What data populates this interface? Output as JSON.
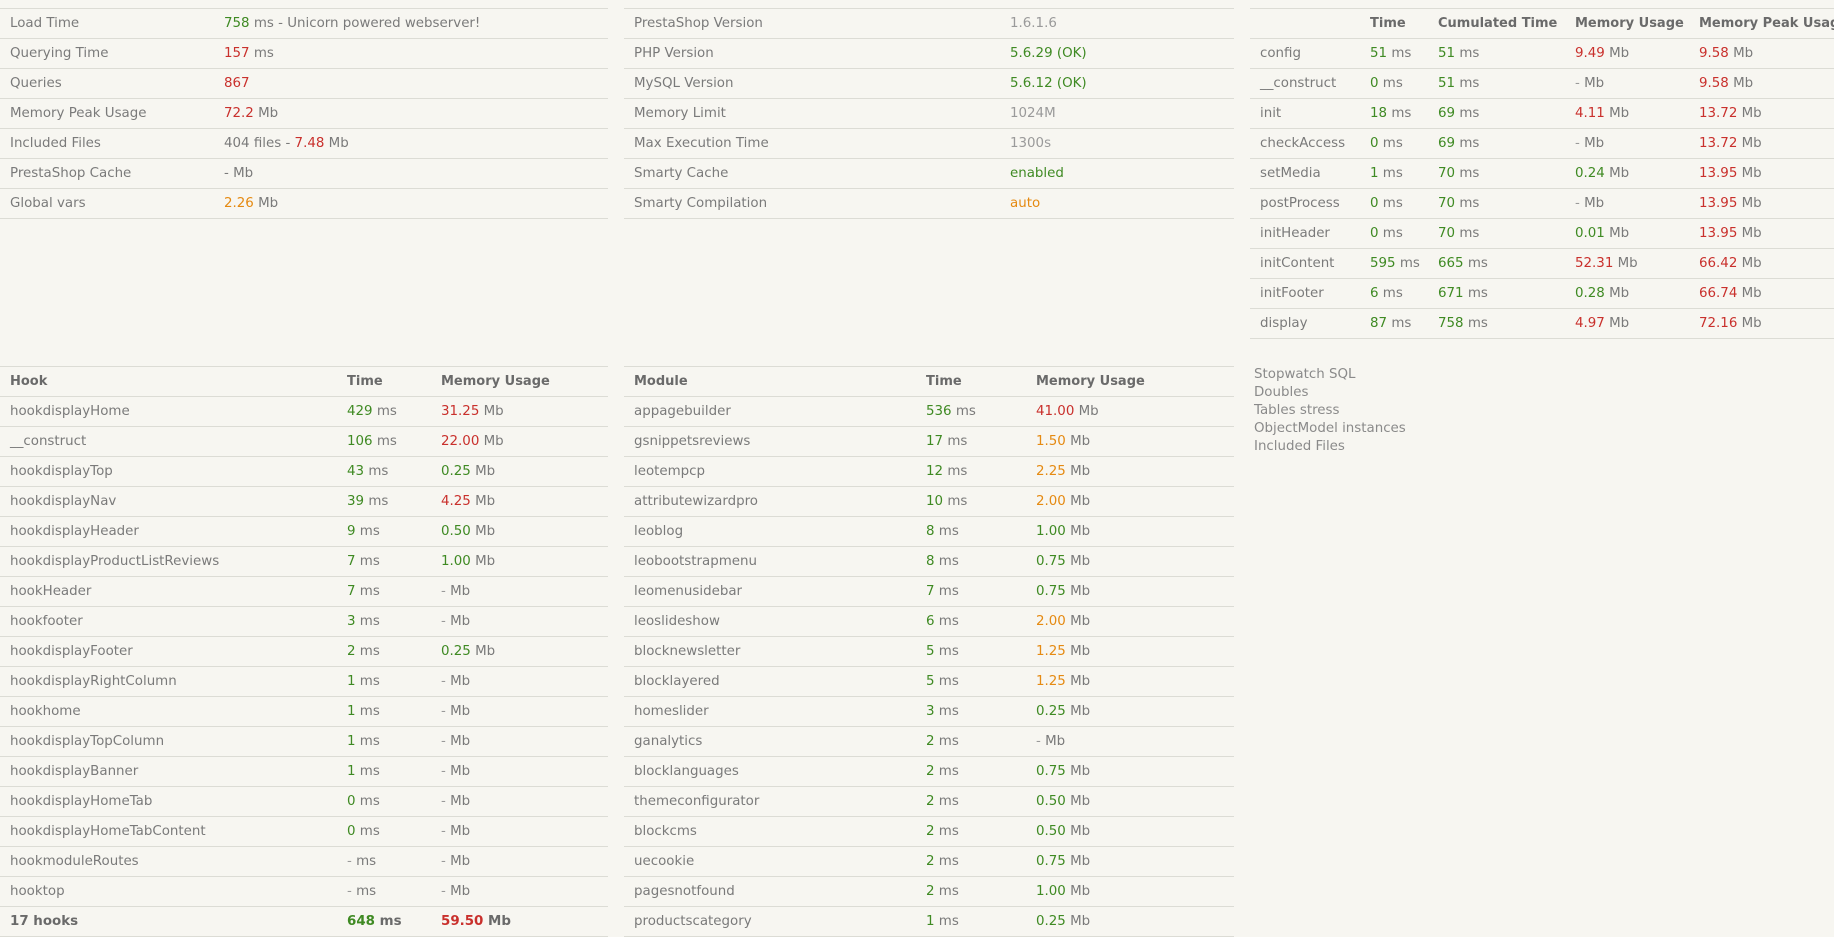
{
  "summary": {
    "load_time_label": "Load Time",
    "load_time_value": "758",
    "load_time_unit": "ms - Unicorn powered webserver!",
    "querying_time_label": "Querying Time",
    "querying_time_value": "157",
    "querying_time_unit": "ms",
    "queries_label": "Queries",
    "queries_value": "867",
    "memory_peak_label": "Memory Peak Usage",
    "memory_peak_value": "72.2",
    "memory_peak_unit": "Mb",
    "included_files_label": "Included Files",
    "included_files_count": "404 files -",
    "included_files_size": "7.48",
    "included_files_unit": "Mb",
    "ps_cache_label": "PrestaShop Cache",
    "ps_cache_value": "- Mb",
    "global_vars_label": "Global vars",
    "global_vars_value": "2.26",
    "global_vars_unit": "Mb"
  },
  "environment": [
    {
      "label": "PrestaShop Version",
      "value": "1.6.1.6",
      "color": "k"
    },
    {
      "label": "PHP Version",
      "value": "5.6.29 (OK)",
      "color": "g"
    },
    {
      "label": "MySQL Version",
      "value": "5.6.12 (OK)",
      "color": "g"
    },
    {
      "label": "Memory Limit",
      "value": "1024M",
      "color": "k"
    },
    {
      "label": "Max Execution Time",
      "value": "1300s",
      "color": "k"
    },
    {
      "label": "Smarty Cache",
      "value": "enabled",
      "color": "g"
    },
    {
      "label": "Smarty Compilation",
      "value": "auto",
      "color": "o"
    }
  ],
  "steps": {
    "headers": [
      "",
      "Time",
      "Cumulated Time",
      "Memory Usage",
      "Memory Peak Usage"
    ],
    "rows": [
      {
        "name": "config",
        "time": "51",
        "cum": "51",
        "mem": "9.49",
        "memc": "r",
        "peak": "9.58"
      },
      {
        "name": "__construct",
        "time": "0",
        "cum": "51",
        "mem": "-",
        "memc": "k",
        "peak": "9.58"
      },
      {
        "name": "init",
        "time": "18",
        "cum": "69",
        "mem": "4.11",
        "memc": "r",
        "peak": "13.72"
      },
      {
        "name": "checkAccess",
        "time": "0",
        "cum": "69",
        "mem": "-",
        "memc": "k",
        "peak": "13.72"
      },
      {
        "name": "setMedia",
        "time": "1",
        "cum": "70",
        "mem": "0.24",
        "memc": "g",
        "peak": "13.95"
      },
      {
        "name": "postProcess",
        "time": "0",
        "cum": "70",
        "mem": "-",
        "memc": "k",
        "peak": "13.95"
      },
      {
        "name": "initHeader",
        "time": "0",
        "cum": "70",
        "mem": "0.01",
        "memc": "g",
        "peak": "13.95"
      },
      {
        "name": "initContent",
        "time": "595",
        "cum": "665",
        "mem": "52.31",
        "memc": "r",
        "peak": "66.42"
      },
      {
        "name": "initFooter",
        "time": "6",
        "cum": "671",
        "mem": "0.28",
        "memc": "g",
        "peak": "66.74"
      },
      {
        "name": "display",
        "time": "87",
        "cum": "758",
        "mem": "4.97",
        "memc": "r",
        "peak": "72.16"
      }
    ]
  },
  "hooks": {
    "headers": [
      "Hook",
      "Time",
      "Memory Usage"
    ],
    "rows": [
      {
        "name": "hookdisplayHome",
        "time": "429",
        "tc": "g",
        "mem": "31.25",
        "mc": "r"
      },
      {
        "name": "__construct",
        "time": "106",
        "tc": "g",
        "mem": "22.00",
        "mc": "r"
      },
      {
        "name": "hookdisplayTop",
        "time": "43",
        "tc": "g",
        "mem": "0.25",
        "mc": "g"
      },
      {
        "name": "hookdisplayNav",
        "time": "39",
        "tc": "g",
        "mem": "4.25",
        "mc": "r"
      },
      {
        "name": "hookdisplayHeader",
        "time": "9",
        "tc": "g",
        "mem": "0.50",
        "mc": "g"
      },
      {
        "name": "hookdisplayProductListReviews",
        "time": "7",
        "tc": "g",
        "mem": "1.00",
        "mc": "g"
      },
      {
        "name": "hookHeader",
        "time": "7",
        "tc": "g",
        "mem": "-",
        "mc": "k"
      },
      {
        "name": "hookfooter",
        "time": "3",
        "tc": "g",
        "mem": "-",
        "mc": "k"
      },
      {
        "name": "hookdisplayFooter",
        "time": "2",
        "tc": "g",
        "mem": "0.25",
        "mc": "g"
      },
      {
        "name": "hookdisplayRightColumn",
        "time": "1",
        "tc": "g",
        "mem": "-",
        "mc": "k"
      },
      {
        "name": "hookhome",
        "time": "1",
        "tc": "g",
        "mem": "-",
        "mc": "k"
      },
      {
        "name": "hookdisplayTopColumn",
        "time": "1",
        "tc": "g",
        "mem": "-",
        "mc": "k"
      },
      {
        "name": "hookdisplayBanner",
        "time": "1",
        "tc": "g",
        "mem": "-",
        "mc": "k"
      },
      {
        "name": "hookdisplayHomeTab",
        "time": "0",
        "tc": "g",
        "mem": "-",
        "mc": "k"
      },
      {
        "name": "hookdisplayHomeTabContent",
        "time": "0",
        "tc": "g",
        "mem": "-",
        "mc": "k"
      },
      {
        "name": "hookmoduleRoutes",
        "time": "-",
        "tc": "k",
        "mem": "-",
        "mc": "k"
      },
      {
        "name": "hooktop",
        "time": "-",
        "tc": "k",
        "mem": "-",
        "mc": "k"
      }
    ],
    "total": {
      "name": "17 hooks",
      "time": "648",
      "mem": "59.50"
    }
  },
  "modules": {
    "headers": [
      "Module",
      "Time",
      "Memory Usage"
    ],
    "rows": [
      {
        "name": "appagebuilder",
        "time": "536",
        "mem": "41.00",
        "mc": "r"
      },
      {
        "name": "gsnippetsreviews",
        "time": "17",
        "mem": "1.50",
        "mc": "o"
      },
      {
        "name": "leotempcp",
        "time": "12",
        "mem": "2.25",
        "mc": "o"
      },
      {
        "name": "attributewizardpro",
        "time": "10",
        "mem": "2.00",
        "mc": "o"
      },
      {
        "name": "leoblog",
        "time": "8",
        "mem": "1.00",
        "mc": "g"
      },
      {
        "name": "leobootstrapmenu",
        "time": "8",
        "mem": "0.75",
        "mc": "g"
      },
      {
        "name": "leomenusidebar",
        "time": "7",
        "mem": "0.75",
        "mc": "g"
      },
      {
        "name": "leoslideshow",
        "time": "6",
        "mem": "2.00",
        "mc": "o"
      },
      {
        "name": "blocknewsletter",
        "time": "5",
        "mem": "1.25",
        "mc": "o"
      },
      {
        "name": "blocklayered",
        "time": "5",
        "mem": "1.25",
        "mc": "o"
      },
      {
        "name": "homeslider",
        "time": "3",
        "mem": "0.25",
        "mc": "g"
      },
      {
        "name": "ganalytics",
        "time": "2",
        "mem": "-",
        "mc": "k"
      },
      {
        "name": "blocklanguages",
        "time": "2",
        "mem": "0.75",
        "mc": "g"
      },
      {
        "name": "themeconfigurator",
        "time": "2",
        "mem": "0.50",
        "mc": "g"
      },
      {
        "name": "blockcms",
        "time": "2",
        "mem": "0.50",
        "mc": "g"
      },
      {
        "name": "uecookie",
        "time": "2",
        "mem": "0.75",
        "mc": "g"
      },
      {
        "name": "pagesnotfound",
        "time": "2",
        "mem": "1.00",
        "mc": "g"
      },
      {
        "name": "productscategory",
        "time": "1",
        "mem": "0.25",
        "mc": "g"
      }
    ]
  },
  "units": {
    "ms": "ms",
    "mb": "Mb"
  },
  "side_links": [
    "Stopwatch SQL",
    "Doubles",
    "Tables stress",
    "ObjectModel instances",
    "Included Files"
  ]
}
